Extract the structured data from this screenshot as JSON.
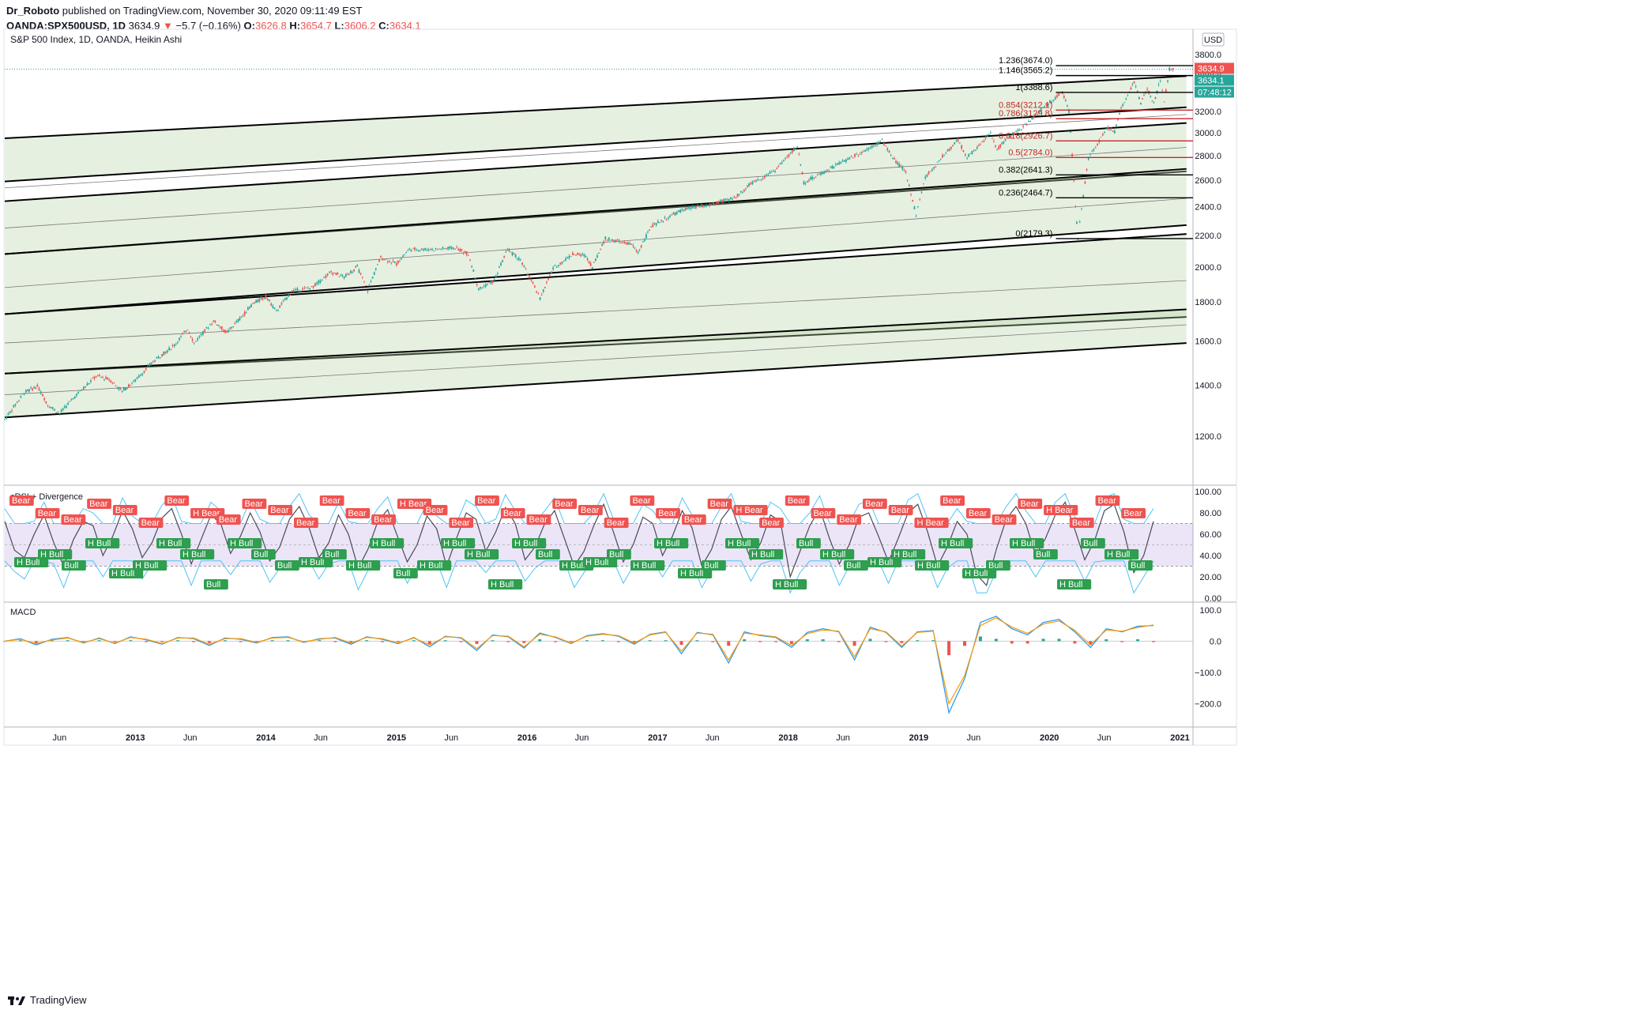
{
  "header": {
    "publisher": "Dr_Roboto",
    "published_text": "published on TradingView.com, November 30, 2020 09:11:49 EST",
    "symbol": "OANDA:SPX500USD, 1D",
    "last": "3634.9",
    "change_arrow": "▼",
    "change": "−5.7 (−0.16%)",
    "o_label": "O:",
    "o": "3626.8",
    "h_label": "H:",
    "h": "3654.7",
    "l_label": "L:",
    "l": "3606.2",
    "c_label": "C:",
    "c": "3634.1"
  },
  "footer": {
    "brand": "TradingView"
  },
  "chart_data": [
    {
      "type": "candlestick",
      "title": "S&P 500 Index, 1D, OANDA, Heikin Ashi",
      "currency": "USD",
      "y_scale": "log",
      "ylim": [
        1050,
        3900
      ],
      "y_ticks": [
        1200,
        1400,
        1600,
        1800,
        2000,
        2200,
        2400,
        2600,
        2800,
        3000,
        3200,
        3400,
        3600,
        3800
      ],
      "y_tick_labels": [
        "1200.0",
        "1400.0",
        "1600.0",
        "1800.0",
        "2000.0",
        "2200.0",
        "2400.0",
        "2600.0",
        "2800.0",
        "3000.0",
        "3200.0",
        "3400.0",
        "3600.0",
        "3800.0"
      ],
      "x_tick_labels": [
        "Jun",
        "2013",
        "Jun",
        "2014",
        "Jun",
        "2015",
        "Jun",
        "2016",
        "Jun",
        "2017",
        "Jun",
        "2018",
        "Jun",
        "2019",
        "Jun",
        "2020",
        "Jun",
        "2021"
      ],
      "x_ticks": [
        2012.42,
        2013.0,
        2013.42,
        2014.0,
        2014.42,
        2015.0,
        2015.42,
        2016.0,
        2016.42,
        2017.0,
        2017.42,
        2018.0,
        2018.42,
        2019.0,
        2019.42,
        2020.0,
        2020.42,
        2021.0
      ],
      "xlim": [
        2012.0,
        2021.1
      ],
      "price_path": [
        [
          2012.0,
          1262
        ],
        [
          2012.15,
          1370
        ],
        [
          2012.25,
          1395
        ],
        [
          2012.33,
          1320
        ],
        [
          2012.42,
          1285
        ],
        [
          2012.55,
          1360
        ],
        [
          2012.7,
          1440
        ],
        [
          2012.8,
          1425
        ],
        [
          2012.9,
          1375
        ],
        [
          2013.0,
          1420
        ],
        [
          2013.15,
          1510
        ],
        [
          2013.3,
          1580
        ],
        [
          2013.4,
          1660
        ],
        [
          2013.45,
          1590
        ],
        [
          2013.6,
          1700
        ],
        [
          2013.7,
          1640
        ],
        [
          2013.8,
          1710
        ],
        [
          2013.9,
          1790
        ],
        [
          2014.0,
          1830
        ],
        [
          2014.08,
          1750
        ],
        [
          2014.2,
          1860
        ],
        [
          2014.35,
          1880
        ],
        [
          2014.5,
          1970
        ],
        [
          2014.6,
          1940
        ],
        [
          2014.7,
          2000
        ],
        [
          2014.78,
          1865
        ],
        [
          2014.88,
          2060
        ],
        [
          2015.0,
          2020
        ],
        [
          2015.1,
          2110
        ],
        [
          2015.3,
          2110
        ],
        [
          2015.45,
          2120
        ],
        [
          2015.55,
          2080
        ],
        [
          2015.63,
          1870
        ],
        [
          2015.75,
          1920
        ],
        [
          2015.85,
          2110
        ],
        [
          2015.95,
          2040
        ],
        [
          2016.1,
          1820
        ],
        [
          2016.2,
          1990
        ],
        [
          2016.35,
          2080
        ],
        [
          2016.45,
          2070
        ],
        [
          2016.5,
          2000
        ],
        [
          2016.6,
          2180
        ],
        [
          2016.8,
          2140
        ],
        [
          2016.85,
          2090
        ],
        [
          2016.95,
          2260
        ],
        [
          2017.2,
          2380
        ],
        [
          2017.4,
          2410
        ],
        [
          2017.6,
          2470
        ],
        [
          2017.7,
          2560
        ],
        [
          2017.9,
          2680
        ],
        [
          2018.07,
          2880
        ],
        [
          2018.12,
          2580
        ],
        [
          2018.25,
          2650
        ],
        [
          2018.35,
          2710
        ],
        [
          2018.55,
          2820
        ],
        [
          2018.72,
          2930
        ],
        [
          2018.8,
          2780
        ],
        [
          2018.9,
          2660
        ],
        [
          2018.98,
          2340
        ],
        [
          2019.05,
          2620
        ],
        [
          2019.3,
          2940
        ],
        [
          2019.37,
          2780
        ],
        [
          2019.55,
          2990
        ],
        [
          2019.6,
          2850
        ],
        [
          2019.65,
          2920
        ],
        [
          2019.8,
          3050
        ],
        [
          2019.95,
          3230
        ],
        [
          2020.1,
          3390
        ],
        [
          2020.15,
          3200
        ],
        [
          2020.2,
          2400
        ],
        [
          2020.22,
          2180
        ],
        [
          2020.3,
          2780
        ],
        [
          2020.45,
          3050
        ],
        [
          2020.5,
          3010
        ],
        [
          2020.55,
          3230
        ],
        [
          2020.65,
          3500
        ],
        [
          2020.7,
          3280
        ],
        [
          2020.75,
          3420
        ],
        [
          2020.8,
          3270
        ],
        [
          2020.85,
          3520
        ],
        [
          2020.88,
          3300
        ],
        [
          2020.92,
          3630
        ],
        [
          2020.96,
          3635
        ]
      ],
      "channels": [
        {
          "start": [
            2012.0,
            2950
          ],
          "end": [
            2021.05,
            3560
          ],
          "mid_start": [
            2012.0,
            2540
          ],
          "mid_end": [
            2021.05,
            3170
          ],
          "low_start": [
            2012.0,
            2590
          ],
          "low_end": [
            2021.05,
            3240
          ]
        },
        {
          "start": [
            2012.0,
            2440
          ],
          "end": [
            2021.05,
            3090
          ],
          "mid_start": [
            2012.0,
            2250
          ],
          "mid_end": [
            2021.05,
            2870
          ],
          "low_start": [
            2012.0,
            2080
          ],
          "low_end": [
            2021.05,
            2670
          ]
        },
        {
          "start": [
            2012.0,
            2080
          ],
          "end": [
            2021.05,
            2690
          ],
          "mid_start": [
            2012.0,
            1880
          ],
          "mid_end": [
            2021.05,
            2460
          ],
          "low_start": [
            2012.0,
            1735
          ],
          "low_end": [
            2021.05,
            2270
          ]
        },
        {
          "start": [
            2012.0,
            1735
          ],
          "end": [
            2021.05,
            2210
          ],
          "mid_start": [
            2012.0,
            1590
          ],
          "mid_end": [
            2021.05,
            1920
          ],
          "low_start": [
            2012.0,
            1450
          ],
          "low_end": [
            2021.05,
            1720
          ]
        },
        {
          "start": [
            2012.0,
            1450
          ],
          "end": [
            2021.05,
            1760
          ],
          "mid_start": [
            2012.0,
            1360
          ],
          "mid_end": [
            2021.05,
            1680
          ],
          "low_start": [
            2012.0,
            1270
          ],
          "low_end": [
            2021.05,
            1590
          ]
        }
      ],
      "fib_levels": [
        {
          "label": "1.236(3674.0)",
          "value": 3674.0,
          "color": "#000000"
        },
        {
          "label": "1.146(3565.2)",
          "value": 3565.2,
          "color": "#000000"
        },
        {
          "label": "1(3388.6)",
          "value": 3388.6,
          "color": "#000000"
        },
        {
          "label": "0.854(3212.1)",
          "value": 3212.1,
          "color": "#c62828"
        },
        {
          "label": "0.786(3129.8)",
          "value": 3129.8,
          "color": "#c62828"
        },
        {
          "label": "0.618(2926.7)",
          "value": 2926.7,
          "color": "#c62828"
        },
        {
          "label": "0.5(2784.0)",
          "value": 2784.0,
          "color": "#c62828"
        },
        {
          "label": "0.382(2641.3)",
          "value": 2641.3,
          "color": "#000000"
        },
        {
          "label": "0.236(2464.7)",
          "value": 2464.7,
          "color": "#000000"
        },
        {
          "label": "0(2179.3)",
          "value": 2179.3,
          "color": "#000000"
        }
      ],
      "fib_start": 2020.05,
      "price_labels": [
        {
          "text": "3634.9",
          "color": "#ef5350"
        },
        {
          "text": "3634.1",
          "color": "#26a69a"
        },
        {
          "text": "07:48:12",
          "color": "#26a69a"
        }
      ]
    },
    {
      "type": "line",
      "title": "cRSI + Divergence",
      "ylim": [
        0,
        100
      ],
      "y_ticks": [
        0,
        20,
        40,
        60,
        80,
        100
      ],
      "y_tick_labels": [
        "0.00",
        "20.00",
        "40.00",
        "60.00",
        "80.00",
        "100.00"
      ],
      "band": [
        30,
        70
      ],
      "series": [
        {
          "values": [
            72,
            45,
            38,
            60,
            78,
            52,
            30,
            55,
            72,
            68,
            40,
            58,
            82,
            65,
            38,
            52,
            75,
            84,
            60,
            32,
            55,
            78,
            70,
            42,
            58,
            80,
            62,
            35,
            48,
            74,
            86,
            66,
            38,
            52,
            78,
            60,
            28,
            46,
            72,
            83,
            58,
            34,
            50,
            77,
            65,
            30,
            56,
            80,
            74,
            44,
            62,
            85,
            70,
            36,
            48,
            70,
            82,
            56,
            30,
            44,
            68,
            88,
            62,
            34,
            50,
            76,
            70,
            40,
            58,
            82,
            66,
            30,
            46,
            74,
            86,
            60,
            36,
            52,
            78,
            72,
            20,
            44,
            68,
            84,
            56,
            32,
            50,
            76,
            80,
            58,
            34,
            56,
            80,
            88,
            62,
            30,
            48,
            72,
            60,
            22,
            12,
            46,
            74,
            86,
            70,
            40,
            56,
            78,
            90,
            64,
            36,
            54,
            82,
            88,
            62,
            24,
            40,
            72
          ]
        }
      ],
      "divergence_labels": [
        "Bear",
        "Bear",
        "Bear",
        "Bear",
        "Bear",
        "Bear",
        "Bear",
        "H Bear",
        "Bear",
        "Bear",
        "Bear",
        "Bear",
        "Bear",
        "Bear",
        "Bear",
        "H Bear",
        "Bear",
        "Bear",
        "Bear",
        "Bear",
        "Bear",
        "Bear",
        "Bear",
        "Bear",
        "Bear",
        "Bear",
        "Bear",
        "Bear",
        "H Bear",
        "Bear",
        "Bear",
        "Bear",
        "Bear",
        "Bear",
        "Bear",
        "H Bear",
        "Bear",
        "Bear",
        "Bear",
        "Bear",
        "H Bear",
        "Bear",
        "Bear",
        "Bear",
        "H Bull",
        "H Bull",
        "Bull",
        "H Bull",
        "H Bull",
        "H Bull",
        "H Bull",
        "H Bull",
        "Bull",
        "H Bull",
        "Bull",
        "Bull",
        "H Bull",
        "Bull",
        "H Bull",
        "H Bull",
        "Bull",
        "H Bull",
        "H Bull",
        "H Bull",
        "H Bull",
        "H Bull",
        "Bull",
        "H Bull",
        "H Bull",
        "Bull",
        "H Bull",
        "H Bull",
        "H Bull",
        "Bull",
        "H Bull",
        "H Bull",
        "H Bull",
        "Bull",
        "H Bull",
        "Bull",
        "H Bull",
        "H Bull",
        "H Bull",
        "H Bull",
        "H Bull",
        "Bull",
        "H Bull",
        "Bull",
        "H Bull",
        "Bull",
        "H Bull",
        "Bull"
      ]
    },
    {
      "type": "line",
      "title": "MACD",
      "ylim": [
        -250,
        110
      ],
      "y_ticks": [
        100,
        0,
        -100,
        -200
      ],
      "y_tick_labels": [
        "100.0",
        "0.0",
        "−100.0",
        "−200.0"
      ],
      "series": [
        {
          "name": "",
          "color": "#2196f3",
          "values": [
            0,
            8,
            -12,
            6,
            12,
            -6,
            10,
            -8,
            14,
            4,
            -10,
            12,
            8,
            -14,
            10,
            6,
            -6,
            12,
            14,
            -4,
            8,
            10,
            -10,
            14,
            6,
            -8,
            12,
            -18,
            16,
            10,
            -30,
            20,
            14,
            -22,
            26,
            12,
            -8,
            18,
            24,
            16,
            -10,
            22,
            30,
            -40,
            28,
            20,
            -70,
            30,
            18,
            12,
            -20,
            28,
            40,
            30,
            -60,
            45,
            28,
            -20,
            30,
            34,
            -230,
            -120,
            60,
            80,
            40,
            20,
            60,
            70,
            30,
            -20,
            40,
            30,
            48,
            50
          ]
        },
        {
          "name": "",
          "color": "#ff9800",
          "values": [
            0,
            6,
            -8,
            4,
            10,
            -4,
            8,
            -6,
            12,
            6,
            -8,
            10,
            10,
            -10,
            8,
            8,
            -4,
            10,
            12,
            -2,
            6,
            12,
            -6,
            12,
            8,
            -6,
            10,
            -12,
            14,
            12,
            -24,
            18,
            16,
            -18,
            22,
            14,
            -6,
            16,
            22,
            18,
            -6,
            20,
            28,
            -32,
            26,
            22,
            -60,
            26,
            20,
            14,
            -14,
            24,
            36,
            32,
            -50,
            40,
            30,
            -16,
            28,
            32,
            -200,
            -110,
            50,
            75,
            45,
            25,
            55,
            65,
            35,
            -12,
            36,
            32,
            44,
            52
          ]
        }
      ]
    }
  ]
}
